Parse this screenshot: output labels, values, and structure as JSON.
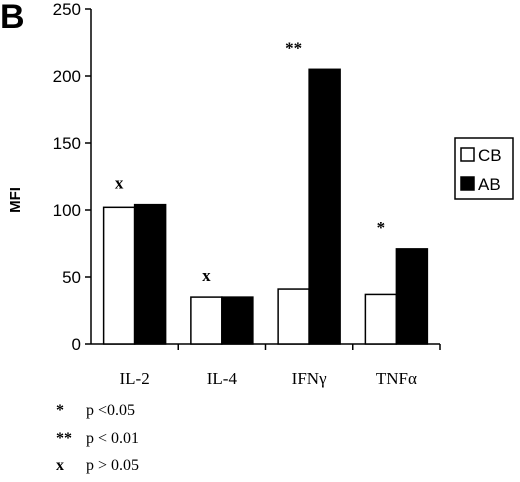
{
  "panel_label": "B",
  "chart_data": {
    "type": "bar",
    "ylabel": "MFI",
    "xlabel": "",
    "ylim": [
      0,
      250
    ],
    "yticks": [
      0,
      50,
      100,
      150,
      200,
      250
    ],
    "categories": [
      "IL-2",
      "IL-4",
      "IFNγ",
      "TNFα"
    ],
    "series": [
      {
        "name": "CB",
        "fill": "#ffffff",
        "values": [
          102,
          35,
          41,
          37
        ]
      },
      {
        "name": "AB",
        "fill": "#000000",
        "values": [
          104,
          35,
          205,
          71
        ]
      }
    ],
    "annotations": [
      "x",
      "x",
      "**",
      "*"
    ],
    "legend_position": "right"
  },
  "footnotes": [
    {
      "symbol": "*",
      "text": "p <0.05"
    },
    {
      "symbol": "**",
      "text": "p < 0.01"
    },
    {
      "symbol": "x",
      "text": "p > 0.05"
    }
  ]
}
